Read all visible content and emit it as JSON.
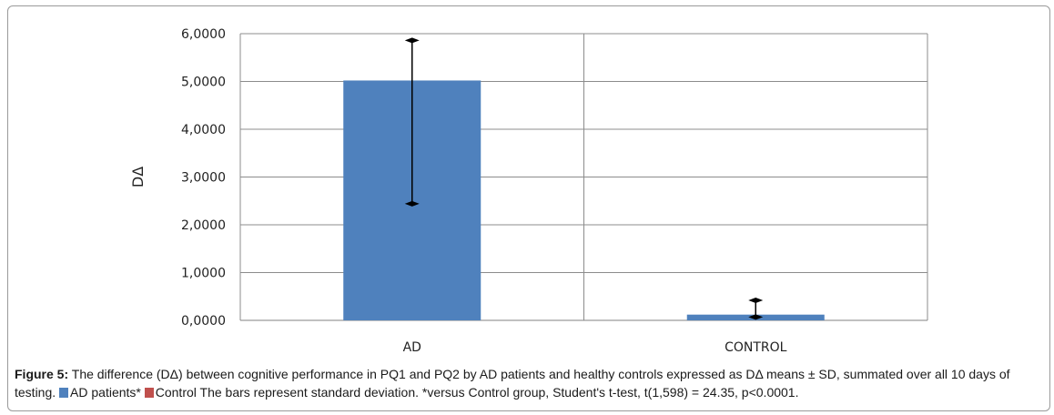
{
  "chart_data": {
    "type": "bar",
    "title": "",
    "xlabel": "",
    "ylabel": "DΔ",
    "ylim": [
      0,
      6
    ],
    "yticks": [
      0,
      1,
      2,
      3,
      4,
      5,
      6
    ],
    "ytick_labels": [
      "0,0000",
      "1,0000",
      "2,0000",
      "3,0000",
      "4,0000",
      "5,0000",
      "6,0000"
    ],
    "categories": [
      "AD",
      "CONTROL"
    ],
    "values": [
      5.02,
      0.12
    ],
    "error_bars": [
      {
        "low": 2.44,
        "high": 5.86
      },
      {
        "low": 0.07,
        "high": 0.42
      }
    ],
    "bar_colors": [
      "#4f81bd",
      "#4f81bd"
    ],
    "grid": true,
    "legend": [
      {
        "name": "AD patients*",
        "color": "#4f81bd"
      },
      {
        "name": "Control",
        "color": "#c0504d"
      }
    ]
  },
  "caption": {
    "label": "Figure 5:",
    "text_part1": " The difference (DΔ) between cognitive performance in PQ1 and PQ2 by AD patients and healthy controls expressed as DΔ means ± SD, summated over all 10 days of testing. ",
    "legend_ad": "AD patients*",
    "legend_control": "Control",
    "text_part2": " The bars represent standard deviation. *versus Control group, Student's t-test, t(1,598) = 24.35, p<0.0001."
  }
}
